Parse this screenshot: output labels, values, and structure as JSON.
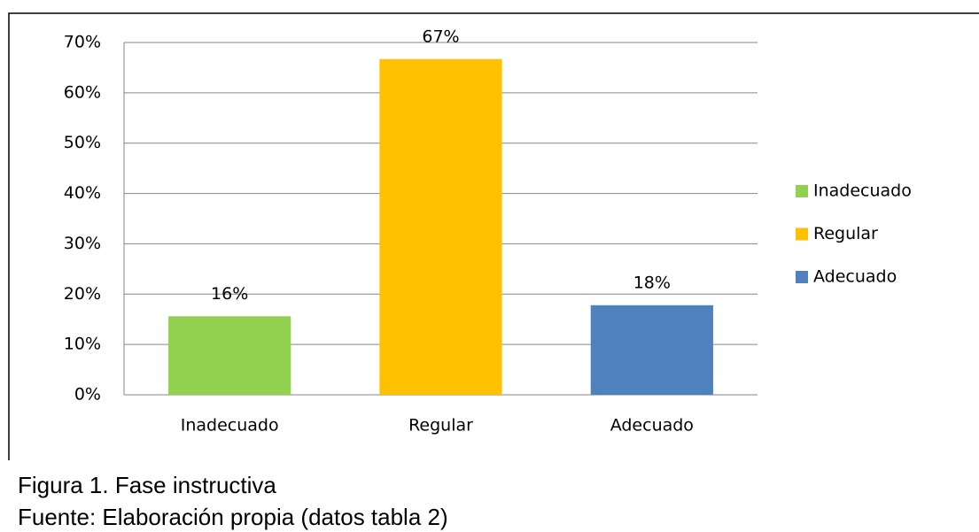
{
  "chart_data": {
    "type": "bar",
    "categories": [
      "Inadecuado",
      "Regular",
      "Adecuado"
    ],
    "values": [
      15.6,
      66.7,
      17.8
    ],
    "value_labels": [
      "16%",
      "67%",
      "18%"
    ],
    "colors": [
      "#92d050",
      "#ffc000",
      "#4f81bd"
    ],
    "ylim": [
      0,
      70
    ],
    "yticks": [
      {
        "value": 0,
        "label": "0%"
      },
      {
        "value": 10,
        "label": "10%"
      },
      {
        "value": 20,
        "label": "20%"
      },
      {
        "value": 30,
        "label": "30%"
      },
      {
        "value": 40,
        "label": "40%"
      },
      {
        "value": 50,
        "label": "50%"
      },
      {
        "value": 60,
        "label": "60%"
      },
      {
        "value": 70,
        "label": "70%"
      }
    ],
    "grid": true,
    "legend": "right",
    "caption": [
      "Figura  1. Fase instructiva",
      "Fuente: Elaboración propia (datos tabla 2)"
    ]
  }
}
